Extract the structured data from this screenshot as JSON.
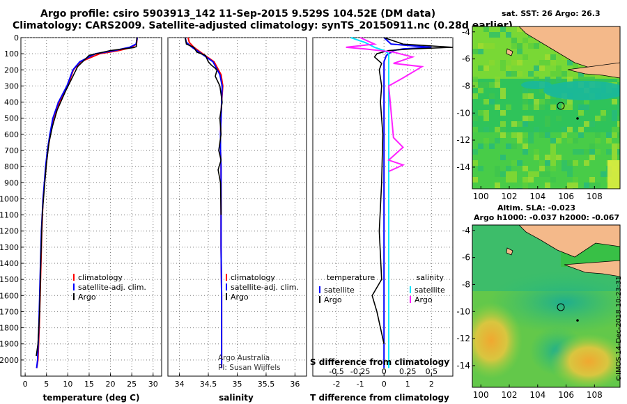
{
  "header": {
    "title_line1": "Argo profile: csiro 5903913_142 11-Sep-2015 9.529S 104.52E (DM data)",
    "title_line2": "Climatology: CARS2009. Satellite-adjusted climatology: synTS_20150911.nc (0.28d earlier)"
  },
  "colors": {
    "climatology": "#ff0000",
    "satellite": "#0000ff",
    "argo": "#000000",
    "sal_satellite": "#00e5ff",
    "sal_argo": "#ff22ff",
    "land": "#f4b98a"
  },
  "chart_data": [
    {
      "type": "line",
      "name": "temperature",
      "xlabel": "temperature (deg C)",
      "ylabel": "",
      "xlim": [
        -1,
        32
      ],
      "ylim": [
        2100,
        0
      ],
      "xticks": [
        "0",
        "5",
        "10",
        "15",
        "20",
        "25",
        "30"
      ],
      "yticks": [
        "0",
        "100",
        "200",
        "300",
        "400",
        "500",
        "600",
        "700",
        "800",
        "900",
        "1000",
        "1100",
        "1200",
        "1300",
        "1400",
        "1500",
        "1600",
        "1700",
        "1800",
        "1900",
        "2000"
      ],
      "legend": [
        "climatology",
        "satellite-adj. clim.",
        "Argo"
      ],
      "series": [
        {
          "name": "climatology",
          "color": "#ff0000",
          "x": [
            26.3,
            26.1,
            25.0,
            22.0,
            17.5,
            13.0,
            11.3,
            10.0,
            8.0,
            6.6,
            5.9,
            5.3,
            4.9,
            4.2,
            3.9,
            3.6,
            3.3,
            3.0,
            2.7
          ],
          "y": [
            0,
            40,
            60,
            80,
            100,
            150,
            200,
            300,
            400,
            500,
            600,
            700,
            800,
            1000,
            1200,
            1500,
            1800,
            2000,
            2050
          ]
        },
        {
          "name": "satellite-adj. clim.",
          "color": "#0000ff",
          "x": [
            26.3,
            26.0,
            24.5,
            21.0,
            16.5,
            12.8,
            11.2,
            9.8,
            7.8,
            6.5,
            5.8,
            5.2,
            4.8,
            4.2,
            3.8,
            3.5,
            3.2,
            2.9,
            2.7
          ],
          "y": [
            0,
            40,
            60,
            80,
            100,
            150,
            200,
            300,
            400,
            500,
            600,
            700,
            800,
            1000,
            1200,
            1500,
            1800,
            2000,
            2050
          ]
        },
        {
          "name": "Argo",
          "color": "#000000",
          "x": [
            26.2,
            26.1,
            26.1,
            25.5,
            20.0,
            15.0,
            12.3,
            11.0,
            9.5,
            7.5,
            6.4,
            5.6,
            5.0,
            4.6,
            4.0,
            3.7,
            3.4,
            3.0,
            2.6
          ],
          "y": [
            0,
            30,
            55,
            62,
            80,
            110,
            180,
            250,
            330,
            450,
            550,
            650,
            780,
            900,
            1100,
            1350,
            1700,
            1900,
            1975
          ]
        }
      ]
    },
    {
      "type": "line",
      "name": "salinity",
      "xlabel": "salinity",
      "xlim": [
        33.8,
        36.2
      ],
      "ylim": [
        2100,
        0
      ],
      "xticks": [
        "34",
        "34.5",
        "35",
        "35.5",
        "36"
      ],
      "legend": [
        "climatology",
        "satellite-adj. clim.",
        "Argo"
      ],
      "annotation": [
        "Argo Australia",
        "PI: Susan Wijffels"
      ],
      "series": [
        {
          "name": "climatology",
          "color": "#ff0000",
          "x": [
            34.15,
            34.17,
            34.25,
            34.4,
            34.6,
            34.72,
            34.75,
            34.73,
            34.72,
            34.71,
            34.71,
            34.72,
            34.72,
            34.72,
            34.73,
            34.73,
            34.73
          ],
          "y": [
            0,
            30,
            60,
            100,
            150,
            230,
            300,
            400,
            500,
            600,
            700,
            800,
            1000,
            1300,
            1600,
            1900,
            2050
          ]
        },
        {
          "name": "satellite-adj. clim.",
          "color": "#0000ff",
          "x": [
            34.1,
            34.12,
            34.22,
            34.38,
            34.58,
            34.7,
            34.74,
            34.73,
            34.72,
            34.71,
            34.71,
            34.72,
            34.72,
            34.72,
            34.73,
            34.73,
            34.73
          ],
          "y": [
            0,
            30,
            60,
            100,
            150,
            230,
            300,
            400,
            500,
            600,
            700,
            800,
            1000,
            1300,
            1600,
            1900,
            2050
          ]
        },
        {
          "name": "Argo",
          "color": "#000000",
          "x": [
            34.1,
            34.12,
            34.25,
            34.3,
            34.45,
            34.5,
            34.55,
            34.65,
            34.62,
            34.7,
            34.74,
            34.7,
            34.72,
            34.68,
            34.72,
            34.67,
            34.71,
            34.72
          ],
          "y": [
            0,
            40,
            60,
            90,
            110,
            150,
            170,
            200,
            240,
            300,
            400,
            500,
            600,
            700,
            760,
            820,
            900,
            1100
          ]
        }
      ]
    },
    {
      "type": "line",
      "name": "difference",
      "xlabel": "T difference from climatology",
      "xlabel_top": "S difference from climatology",
      "xlim": [
        -3,
        2.9
      ],
      "ylim": [
        2100,
        0
      ],
      "xticks": [
        "-2",
        "-1",
        "0",
        "1",
        "2"
      ],
      "xticks_s": [
        "-0.5",
        "-0.25",
        "0",
        "0.25",
        "0.5"
      ],
      "legend_left_title": "temperature",
      "legend_left": [
        "satellite",
        "Argo"
      ],
      "legend_right_title": "salinity",
      "legend_right": [
        "satellite",
        "Argo"
      ],
      "series": [
        {
          "name": "T satellite",
          "color": "#0000ff",
          "x": [
            0.0,
            0.3,
            2.0,
            0.8,
            0.4,
            0.1,
            0.0,
            0.0,
            0.0,
            0.0,
            0.0,
            0.0,
            0.0
          ],
          "y": [
            0,
            40,
            60,
            70,
            80,
            110,
            150,
            200,
            300,
            500,
            800,
            1200,
            2050
          ]
        },
        {
          "name": "T Argo",
          "color": "#000000",
          "x": [
            0.0,
            0.8,
            2.9,
            1.2,
            0.2,
            -0.3,
            -0.4,
            -0.1,
            -0.2,
            -0.1,
            -0.15,
            -0.05,
            -0.1,
            -0.2,
            -0.1,
            -0.5,
            -0.3,
            0.0
          ],
          "y": [
            0,
            40,
            60,
            70,
            80,
            100,
            120,
            160,
            200,
            300,
            400,
            600,
            900,
            1200,
            1500,
            1600,
            1700,
            1900
          ]
        },
        {
          "name": "S satellite",
          "color": "#00e5ff",
          "x": [
            -0.35,
            -0.2,
            -0.1,
            0.0,
            0.05,
            0.05,
            0.05,
            0.05,
            0.05,
            0.05,
            0.05,
            0.05
          ],
          "y": [
            0,
            30,
            60,
            80,
            100,
            200,
            300,
            500,
            800,
            1200,
            1600,
            2050
          ]
        },
        {
          "name": "S Argo",
          "color": "#ff22ff",
          "x": [
            -0.25,
            -0.1,
            -0.4,
            -0.2,
            0.1,
            0.3,
            0.1,
            0.4,
            0.2,
            0.05,
            0.1,
            0.2,
            0.05,
            0.2,
            0.05
          ],
          "y": [
            0,
            40,
            60,
            70,
            90,
            120,
            160,
            180,
            250,
            300,
            620,
            680,
            760,
            790,
            830
          ]
        }
      ]
    }
  ],
  "map_top": {
    "title": "sat. SST: 26  Argo: 26.3",
    "xticks": [
      "100",
      "102",
      "104",
      "106",
      "108"
    ],
    "yticks": [
      "-4",
      "-6",
      "-8",
      "-10",
      "-12",
      "-14"
    ]
  },
  "map_bottom": {
    "title_line1": "Altim. SLA: -0.023",
    "title_line2": "Argo h1000: -0.037 h2000: -0.067",
    "xticks": [
      "100",
      "102",
      "104",
      "106",
      "108"
    ],
    "yticks": [
      "-4",
      "-6",
      "-8",
      "-10",
      "-12",
      "-14"
    ]
  },
  "credit": "©IMOS 14-Dec-2018 10:23:31"
}
